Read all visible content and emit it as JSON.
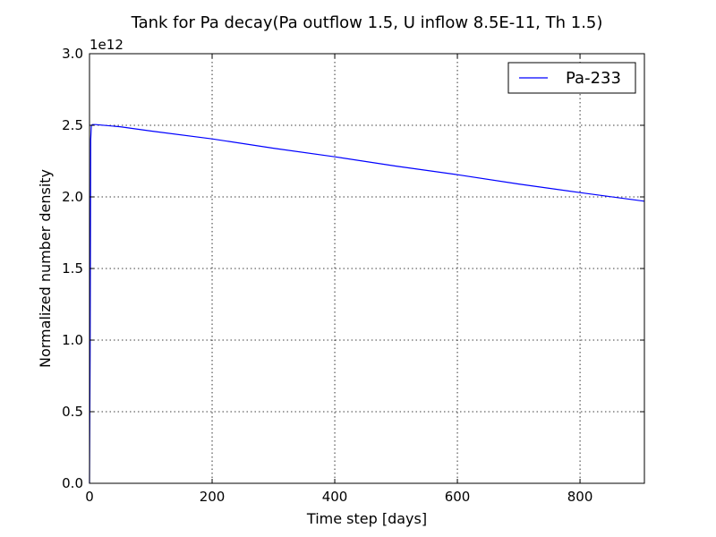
{
  "chart_data": {
    "type": "line",
    "title": "Tank for Pa decay(Pa outflow 1.5, U inflow 8.5E-11, Th 1.5)",
    "xlabel": "Time step [days]",
    "ylabel": "Normalized number density",
    "y_offset_label": "1e12",
    "xlim": [
      0,
      905
    ],
    "ylim": [
      0,
      3.0
    ],
    "x_ticks": [
      0,
      200,
      400,
      600,
      800
    ],
    "x_tick_labels": [
      "0",
      "200",
      "400",
      "600",
      "800"
    ],
    "y_ticks": [
      0.0,
      0.5,
      1.0,
      1.5,
      2.0,
      2.5,
      3.0
    ],
    "y_tick_labels": [
      "0.0",
      "0.5",
      "1.0",
      "1.5",
      "2.0",
      "2.5",
      "3.0"
    ],
    "grid": true,
    "legend_position": "top-right",
    "series": [
      {
        "name": "Pa-233",
        "color": "#0000ff",
        "x": [
          0,
          1,
          2,
          3,
          5,
          10,
          50,
          100,
          200,
          300,
          400,
          500,
          600,
          700,
          800,
          905
        ],
        "y": [
          0.0,
          0.9,
          2.4,
          2.5,
          2.505,
          2.505,
          2.49,
          2.46,
          2.405,
          2.34,
          2.28,
          2.215,
          2.155,
          2.09,
          2.03,
          1.97
        ]
      }
    ]
  }
}
